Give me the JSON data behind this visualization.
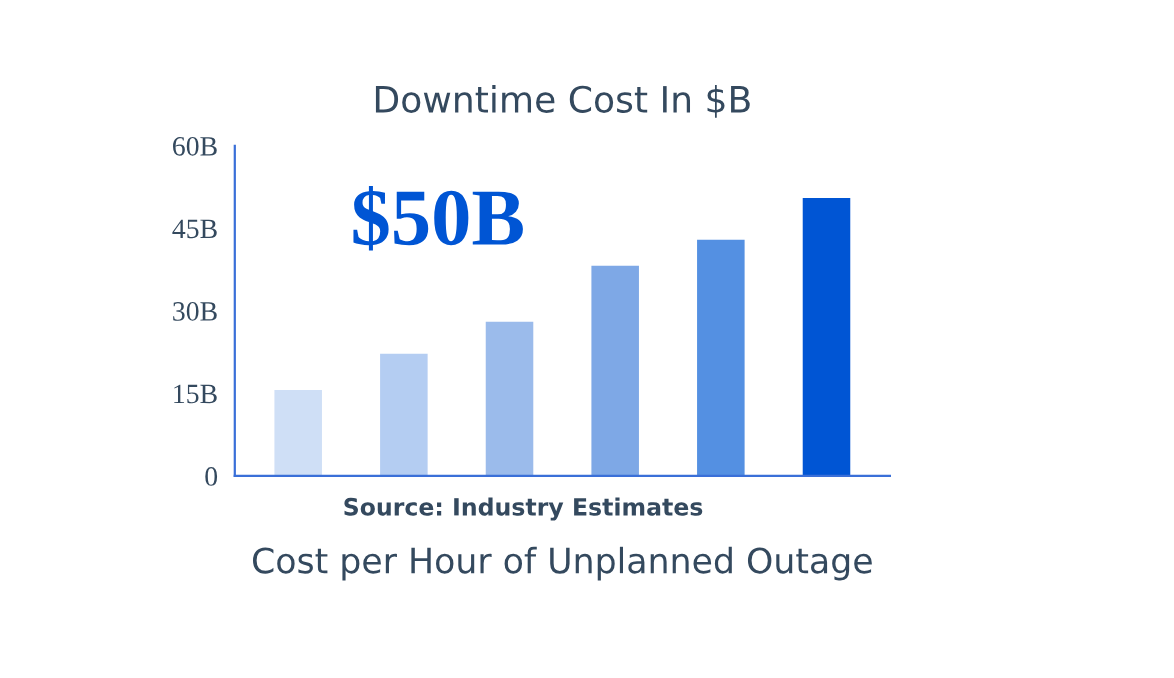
{
  "chart_data": {
    "type": "bar",
    "title": "Downtime Cost In $B",
    "xlabel": "Cost per Hour of Unplanned Outage",
    "categories": [
      null,
      null,
      null,
      null,
      null,
      null
    ],
    "values": [
      15.6,
      22.2,
      28,
      38.2,
      42.9,
      50.5
    ],
    "colors": [
      "#cfdff6",
      "#b4cdf2",
      "#9bbbeb",
      "#7ea8e6",
      "#5490e2",
      "#0055d4"
    ],
    "ylim": [
      0,
      60
    ],
    "yticks": [
      0,
      {
        "value": 15,
        "label": "15B"
      },
      {
        "value": 30,
        "label": "30B"
      },
      {
        "value": 45,
        "label": "45B"
      },
      {
        "value": 60,
        "label": "60B"
      }
    ],
    "grid": false,
    "annotations": [
      "$50B",
      "Source: Industry Estimates"
    ]
  }
}
